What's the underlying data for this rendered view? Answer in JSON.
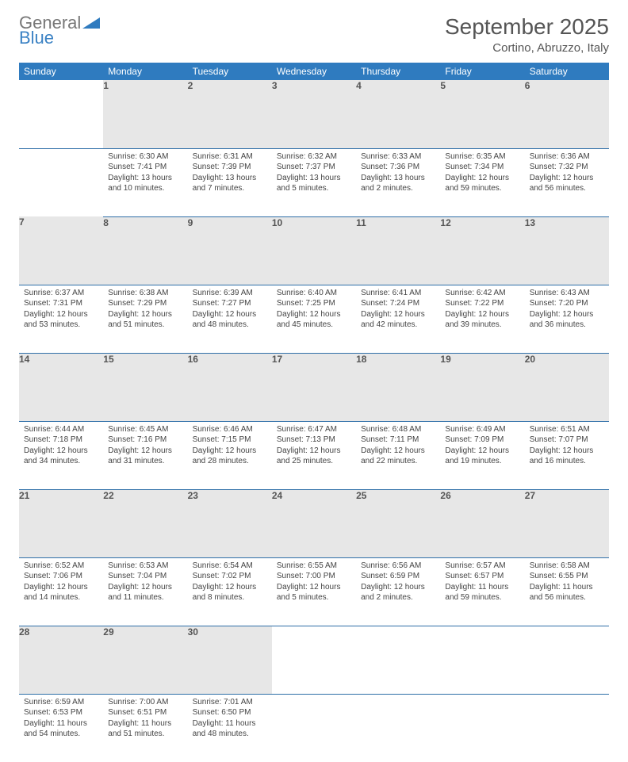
{
  "brand": {
    "name_part1": "General",
    "name_part2": "Blue"
  },
  "title": "September 2025",
  "location": "Cortino, Abruzzo, Italy",
  "day_headers": [
    "Sunday",
    "Monday",
    "Tuesday",
    "Wednesday",
    "Thursday",
    "Friday",
    "Saturday"
  ],
  "colors": {
    "header_bg": "#2f7bbf",
    "header_fg": "#ffffff",
    "daynum_bg": "#e7e7e7",
    "rule": "#2f6fa8",
    "brand_accent": "#3b82c4"
  },
  "weeks": [
    [
      null,
      {
        "n": "1",
        "sr": "Sunrise: 6:30 AM",
        "ss": "Sunset: 7:41 PM",
        "dl1": "Daylight: 13 hours",
        "dl2": "and 10 minutes."
      },
      {
        "n": "2",
        "sr": "Sunrise: 6:31 AM",
        "ss": "Sunset: 7:39 PM",
        "dl1": "Daylight: 13 hours",
        "dl2": "and 7 minutes."
      },
      {
        "n": "3",
        "sr": "Sunrise: 6:32 AM",
        "ss": "Sunset: 7:37 PM",
        "dl1": "Daylight: 13 hours",
        "dl2": "and 5 minutes."
      },
      {
        "n": "4",
        "sr": "Sunrise: 6:33 AM",
        "ss": "Sunset: 7:36 PM",
        "dl1": "Daylight: 13 hours",
        "dl2": "and 2 minutes."
      },
      {
        "n": "5",
        "sr": "Sunrise: 6:35 AM",
        "ss": "Sunset: 7:34 PM",
        "dl1": "Daylight: 12 hours",
        "dl2": "and 59 minutes."
      },
      {
        "n": "6",
        "sr": "Sunrise: 6:36 AM",
        "ss": "Sunset: 7:32 PM",
        "dl1": "Daylight: 12 hours",
        "dl2": "and 56 minutes."
      }
    ],
    [
      {
        "n": "7",
        "sr": "Sunrise: 6:37 AM",
        "ss": "Sunset: 7:31 PM",
        "dl1": "Daylight: 12 hours",
        "dl2": "and 53 minutes."
      },
      {
        "n": "8",
        "sr": "Sunrise: 6:38 AM",
        "ss": "Sunset: 7:29 PM",
        "dl1": "Daylight: 12 hours",
        "dl2": "and 51 minutes."
      },
      {
        "n": "9",
        "sr": "Sunrise: 6:39 AM",
        "ss": "Sunset: 7:27 PM",
        "dl1": "Daylight: 12 hours",
        "dl2": "and 48 minutes."
      },
      {
        "n": "10",
        "sr": "Sunrise: 6:40 AM",
        "ss": "Sunset: 7:25 PM",
        "dl1": "Daylight: 12 hours",
        "dl2": "and 45 minutes."
      },
      {
        "n": "11",
        "sr": "Sunrise: 6:41 AM",
        "ss": "Sunset: 7:24 PM",
        "dl1": "Daylight: 12 hours",
        "dl2": "and 42 minutes."
      },
      {
        "n": "12",
        "sr": "Sunrise: 6:42 AM",
        "ss": "Sunset: 7:22 PM",
        "dl1": "Daylight: 12 hours",
        "dl2": "and 39 minutes."
      },
      {
        "n": "13",
        "sr": "Sunrise: 6:43 AM",
        "ss": "Sunset: 7:20 PM",
        "dl1": "Daylight: 12 hours",
        "dl2": "and 36 minutes."
      }
    ],
    [
      {
        "n": "14",
        "sr": "Sunrise: 6:44 AM",
        "ss": "Sunset: 7:18 PM",
        "dl1": "Daylight: 12 hours",
        "dl2": "and 34 minutes."
      },
      {
        "n": "15",
        "sr": "Sunrise: 6:45 AM",
        "ss": "Sunset: 7:16 PM",
        "dl1": "Daylight: 12 hours",
        "dl2": "and 31 minutes."
      },
      {
        "n": "16",
        "sr": "Sunrise: 6:46 AM",
        "ss": "Sunset: 7:15 PM",
        "dl1": "Daylight: 12 hours",
        "dl2": "and 28 minutes."
      },
      {
        "n": "17",
        "sr": "Sunrise: 6:47 AM",
        "ss": "Sunset: 7:13 PM",
        "dl1": "Daylight: 12 hours",
        "dl2": "and 25 minutes."
      },
      {
        "n": "18",
        "sr": "Sunrise: 6:48 AM",
        "ss": "Sunset: 7:11 PM",
        "dl1": "Daylight: 12 hours",
        "dl2": "and 22 minutes."
      },
      {
        "n": "19",
        "sr": "Sunrise: 6:49 AM",
        "ss": "Sunset: 7:09 PM",
        "dl1": "Daylight: 12 hours",
        "dl2": "and 19 minutes."
      },
      {
        "n": "20",
        "sr": "Sunrise: 6:51 AM",
        "ss": "Sunset: 7:07 PM",
        "dl1": "Daylight: 12 hours",
        "dl2": "and 16 minutes."
      }
    ],
    [
      {
        "n": "21",
        "sr": "Sunrise: 6:52 AM",
        "ss": "Sunset: 7:06 PM",
        "dl1": "Daylight: 12 hours",
        "dl2": "and 14 minutes."
      },
      {
        "n": "22",
        "sr": "Sunrise: 6:53 AM",
        "ss": "Sunset: 7:04 PM",
        "dl1": "Daylight: 12 hours",
        "dl2": "and 11 minutes."
      },
      {
        "n": "23",
        "sr": "Sunrise: 6:54 AM",
        "ss": "Sunset: 7:02 PM",
        "dl1": "Daylight: 12 hours",
        "dl2": "and 8 minutes."
      },
      {
        "n": "24",
        "sr": "Sunrise: 6:55 AM",
        "ss": "Sunset: 7:00 PM",
        "dl1": "Daylight: 12 hours",
        "dl2": "and 5 minutes."
      },
      {
        "n": "25",
        "sr": "Sunrise: 6:56 AM",
        "ss": "Sunset: 6:59 PM",
        "dl1": "Daylight: 12 hours",
        "dl2": "and 2 minutes."
      },
      {
        "n": "26",
        "sr": "Sunrise: 6:57 AM",
        "ss": "Sunset: 6:57 PM",
        "dl1": "Daylight: 11 hours",
        "dl2": "and 59 minutes."
      },
      {
        "n": "27",
        "sr": "Sunrise: 6:58 AM",
        "ss": "Sunset: 6:55 PM",
        "dl1": "Daylight: 11 hours",
        "dl2": "and 56 minutes."
      }
    ],
    [
      {
        "n": "28",
        "sr": "Sunrise: 6:59 AM",
        "ss": "Sunset: 6:53 PM",
        "dl1": "Daylight: 11 hours",
        "dl2": "and 54 minutes."
      },
      {
        "n": "29",
        "sr": "Sunrise: 7:00 AM",
        "ss": "Sunset: 6:51 PM",
        "dl1": "Daylight: 11 hours",
        "dl2": "and 51 minutes."
      },
      {
        "n": "30",
        "sr": "Sunrise: 7:01 AM",
        "ss": "Sunset: 6:50 PM",
        "dl1": "Daylight: 11 hours",
        "dl2": "and 48 minutes."
      },
      null,
      null,
      null,
      null
    ]
  ]
}
